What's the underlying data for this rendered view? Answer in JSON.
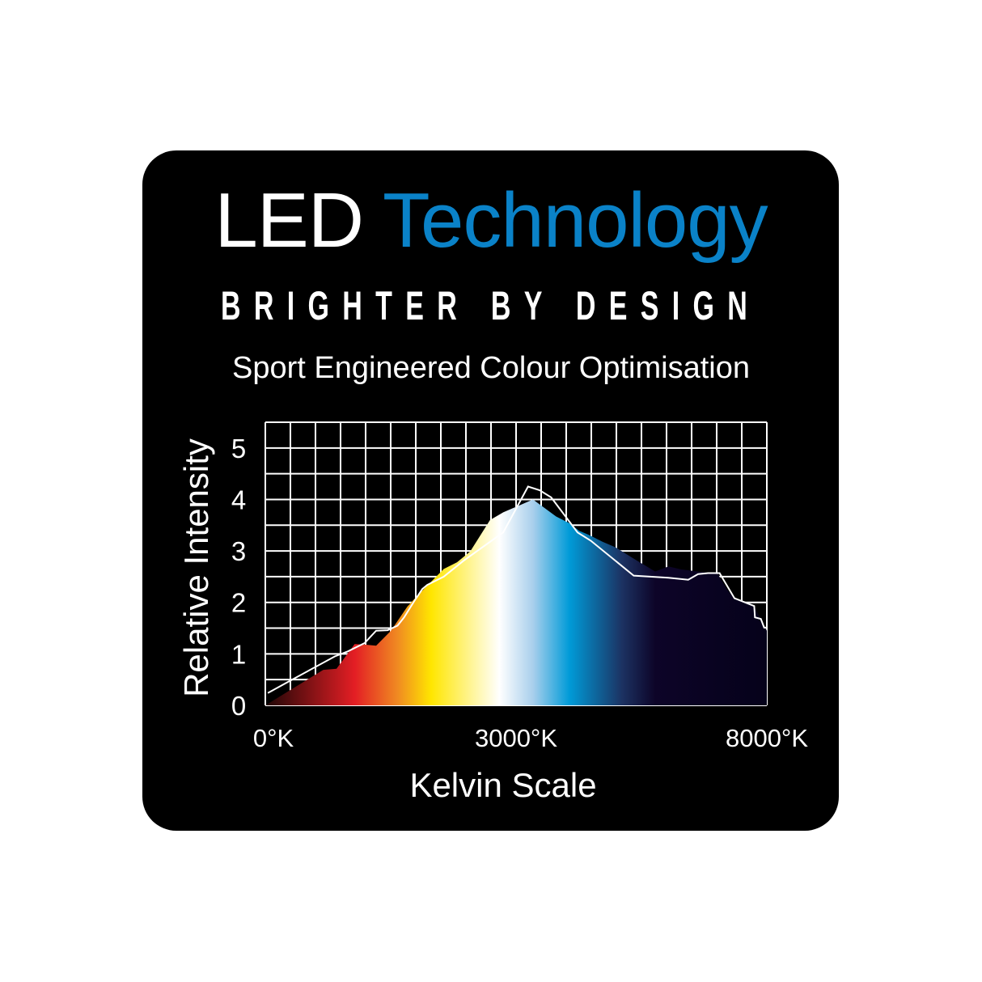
{
  "header": {
    "title_part1": "LED",
    "title_part2": "Technology",
    "tagline": "BRIGHTER BY DESIGN",
    "subtitle": "Sport Engineered Colour Optimisation"
  },
  "colors": {
    "background": "#000000",
    "title_white": "#ffffff",
    "title_blue": "#0a82c8",
    "grid": "#ffffff",
    "line": "#ffffff"
  },
  "chart_data": {
    "type": "area",
    "xlabel": "Kelvin Scale",
    "ylabel": "Relative Intensity",
    "xlim": [
      0,
      8000
    ],
    "ylim": [
      0,
      5.5
    ],
    "grid": true,
    "x_tick_labels": [
      {
        "value": 0,
        "label": "0°K"
      },
      {
        "value": 3000,
        "label": "3000°K"
      },
      {
        "value": 8000,
        "label": "8000°K"
      }
    ],
    "y_tick_labels": [
      "0",
      "1",
      "2",
      "3",
      "4",
      "5"
    ],
    "series": [
      {
        "kind": "filled-area-spectrum-gradient",
        "x": [
          0,
          693,
          852,
          1068,
          1187,
          1326,
          1503,
          1700,
          1819,
          1977,
          2135,
          2294,
          2451,
          2688,
          2846,
          3337,
          3798,
          4061,
          4260,
          4456,
          4719,
          4984,
          5115,
          5379,
          5774,
          6037,
          6300,
          6629,
          7024,
          7223,
          7355,
          7748,
          7947,
          8000
        ],
        "y": [
          0,
          0.69,
          0.71,
          1.19,
          1.18,
          1.16,
          1.45,
          1.92,
          2.13,
          2.39,
          2.65,
          2.78,
          2.99,
          3.6,
          3.75,
          4.0,
          3.67,
          3.54,
          3.39,
          3.31,
          3.18,
          3.07,
          2.99,
          2.83,
          2.6,
          2.7,
          2.64,
          2.6,
          2.55,
          2.23,
          2.08,
          1.92,
          1.55,
          1.45
        ],
        "gradient": [
          {
            "k": 0,
            "color": "#1e0606"
          },
          {
            "k": 1068,
            "color": "#e31e24"
          },
          {
            "k": 1582,
            "color": "#f08a22"
          },
          {
            "k": 1985,
            "color": "#ffe600"
          },
          {
            "k": 2800,
            "color": "#ffffff"
          },
          {
            "k": 3337,
            "color": "#a9cfec"
          },
          {
            "k": 4061,
            "color": "#009bd8"
          },
          {
            "k": 5115,
            "color": "#1c3262"
          },
          {
            "k": 5774,
            "color": "#0d0428"
          },
          {
            "k": 8000,
            "color": "#05021a"
          }
        ]
      },
      {
        "kind": "line",
        "x": [
          30,
          298,
          831,
          989,
          1187,
          1326,
          1463,
          1582,
          1661,
          1780,
          1878,
          1937,
          2135,
          2372,
          2846,
          3239,
          3470,
          3700,
          4226,
          4489,
          5345,
          6037,
          6432,
          6629,
          6827,
          7058,
          7355,
          7748,
          7763,
          7881,
          7947,
          8000
        ],
        "y": [
          0.24,
          0.48,
          0.95,
          1.05,
          1.21,
          1.45,
          1.46,
          1.55,
          1.71,
          2.02,
          2.26,
          2.34,
          2.5,
          2.81,
          3.36,
          4.25,
          4.18,
          4.04,
          3.36,
          3.2,
          2.52,
          2.48,
          2.44,
          2.55,
          2.57,
          2.57,
          2.08,
          1.93,
          1.71,
          1.68,
          1.51,
          1.51
        ]
      }
    ]
  }
}
